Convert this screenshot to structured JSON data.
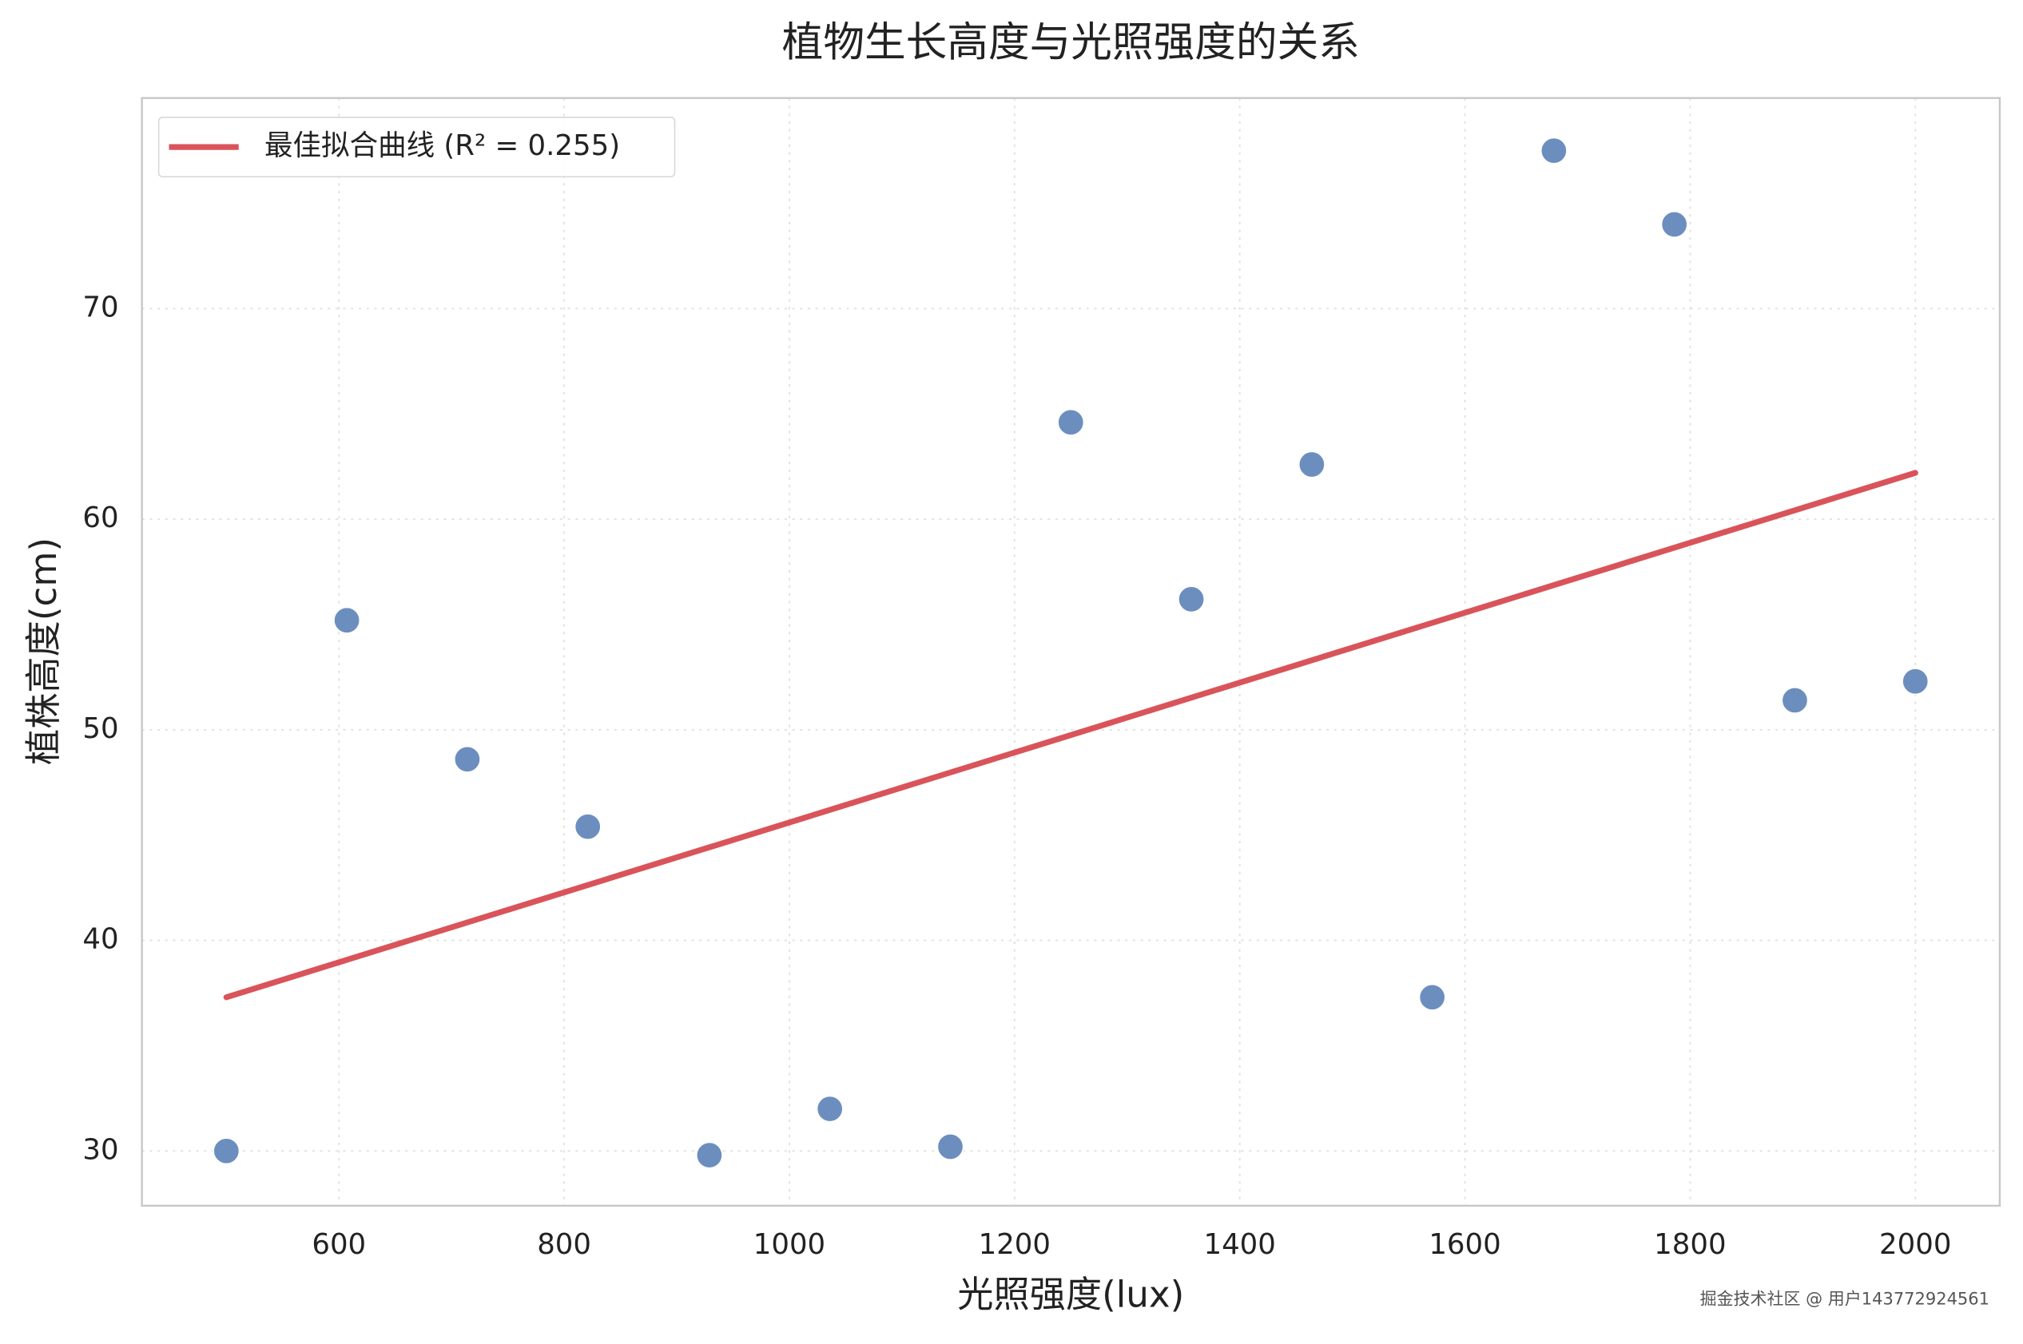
{
  "chart_data": {
    "type": "scatter",
    "title": "植物生长高度与光照强度的关系",
    "x_label": "光照强度(lux)",
    "y_label": "植株高度(cm)",
    "x": [
      500,
      607,
      714,
      821,
      929,
      1036,
      1143,
      1250,
      1357,
      1464,
      1571,
      1679,
      1786,
      1893,
      2000
    ],
    "series": [
      {
        "color": "#6c8ebf",
        "values": [
          30.0,
          55.2,
          48.6,
          45.4,
          29.8,
          32.0,
          30.2,
          64.6,
          56.2,
          62.6,
          37.3,
          77.5,
          74.0,
          51.4,
          52.3
        ]
      },
      {
        "name": "最佳拟合曲线 (R² = 0.255)",
        "type": "line",
        "color": "#d9545a",
        "x": [
          500,
          2000
        ],
        "values": [
          37.3,
          62.2
        ]
      }
    ],
    "xlim": [
      425,
      2075
    ],
    "ylim": [
      27.4,
      80
    ],
    "xticks": [
      600,
      800,
      1000,
      1200,
      1400,
      1600,
      1800,
      2000
    ],
    "yticks": [
      30,
      40,
      50,
      60,
      70
    ],
    "grid": true,
    "legend": "upper left",
    "watermark": "掘金技术社区 @ 用户143772924561"
  }
}
